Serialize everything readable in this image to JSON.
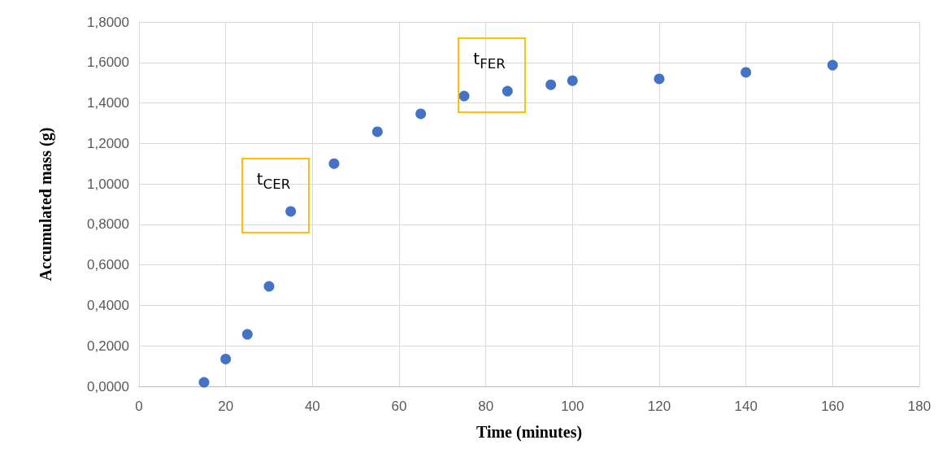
{
  "chart_data": {
    "type": "scatter",
    "xlabel": "Time (minutes)",
    "ylabel": "Accumulated mass (g)",
    "x": [
      15,
      20,
      25,
      30,
      35,
      45,
      55,
      65,
      75,
      85,
      95,
      100,
      120,
      140,
      160
    ],
    "series": [
      {
        "color": "#4472c4",
        "values": [
          0.02,
          0.135,
          0.257,
          0.494,
          0.864,
          1.1,
          1.258,
          1.346,
          1.434,
          1.458,
          1.49,
          1.51,
          1.519,
          1.551,
          1.587
        ]
      }
    ],
    "xlim": [
      0,
      180
    ],
    "xticks": [
      0,
      20,
      40,
      60,
      80,
      100,
      120,
      140,
      160,
      180
    ],
    "ylim": [
      0,
      1.8
    ],
    "yticks": [
      {
        "value": 0,
        "label": "0,0000"
      },
      {
        "value": 0.2,
        "label": "0,2000"
      },
      {
        "value": 0.4,
        "label": "0,4000"
      },
      {
        "value": 0.6,
        "label": "0,6000"
      },
      {
        "value": 0.8,
        "label": "0,8000"
      },
      {
        "value": 1,
        "label": "1,0000"
      },
      {
        "value": 1.2,
        "label": "1,2000"
      },
      {
        "value": 1.4,
        "label": "1,4000"
      },
      {
        "value": 1.6,
        "label": "1,6000"
      },
      {
        "value": 1.8,
        "label": "1,8000"
      }
    ],
    "grid": true,
    "marker": "circle",
    "annotations": [
      {
        "text": "t$_{CER}$",
        "x": 35,
        "y": 0.864
      },
      {
        "text": "t$_{FER}$",
        "x": 85,
        "y": 1.458
      }
    ]
  }
}
